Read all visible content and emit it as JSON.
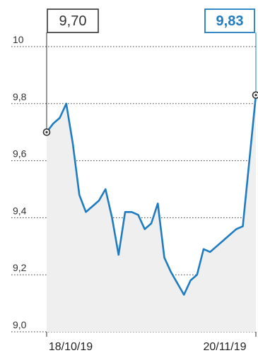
{
  "chart_data": {
    "type": "area",
    "x": [
      "18/10/19",
      "",
      "",
      "",
      "",
      "",
      "",
      "",
      "",
      "",
      "",
      "",
      "",
      "",
      "",
      "",
      "",
      "",
      "",
      "",
      "",
      "",
      "",
      "",
      "",
      "",
      "",
      "",
      "",
      "",
      "",
      "",
      "20/11/19"
    ],
    "values": [
      9.7,
      9.73,
      9.75,
      9.8,
      9.66,
      9.48,
      9.42,
      9.44,
      9.46,
      9.5,
      9.4,
      9.27,
      9.42,
      9.42,
      9.41,
      9.36,
      9.38,
      9.45,
      9.26,
      9.21,
      9.17,
      9.13,
      9.18,
      9.2,
      9.29,
      9.28,
      9.3,
      9.32,
      9.34,
      9.36,
      9.37,
      9.6,
      9.83
    ],
    "ylim": [
      9.0,
      10.0
    ],
    "y_ticks": [
      "9,0",
      "9,2",
      "9,4",
      "9,6",
      "9,8",
      "10"
    ],
    "x_tick_labels": [
      "18/10/19",
      "20/11/19"
    ],
    "grid": true,
    "start_label": "9,70",
    "end_label": "9,83",
    "colors": {
      "line": "#1f7cc0",
      "area": "#efefef",
      "grid": "#444444",
      "end_callout": "#1f7cc0",
      "start_callout": "#333333"
    }
  }
}
